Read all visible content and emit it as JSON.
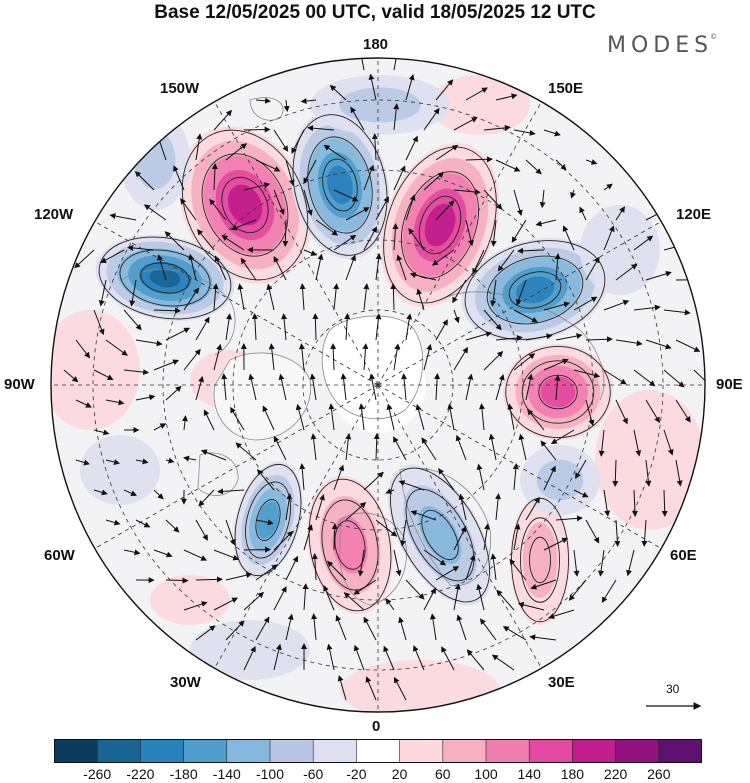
{
  "title": "Base 12/05/2025 00 UTC, valid 18/05/2025 12 UTC",
  "brand": "MODES",
  "brand_mark": "©",
  "meridian_labels": {
    "n180": "180",
    "n150w": "150W",
    "n150e": "150E",
    "n120w": "120W",
    "n120e": "120E",
    "n90w": "90W",
    "n90e": "90E",
    "n60w": "60W",
    "n60e": "60E",
    "n30w": "30W",
    "n30e": "30E",
    "n0": "0"
  },
  "reference_vector": "30",
  "colorbar": {
    "colors": [
      "#0d3d5c",
      "#1a6494",
      "#2a82bd",
      "#4f9dcc",
      "#86b7dc",
      "#b8c8e4",
      "#dedfef",
      "#ffffff",
      "#fbd9dd",
      "#f6b0c0",
      "#f07fb1",
      "#e34ba0",
      "#c21d8c",
      "#93117f",
      "#5e1170"
    ],
    "ticks": [
      "-260",
      "-220",
      "-180",
      "-140",
      "-100",
      "-60",
      "-20",
      "20",
      "60",
      "100",
      "140",
      "180",
      "220",
      "260"
    ]
  }
}
